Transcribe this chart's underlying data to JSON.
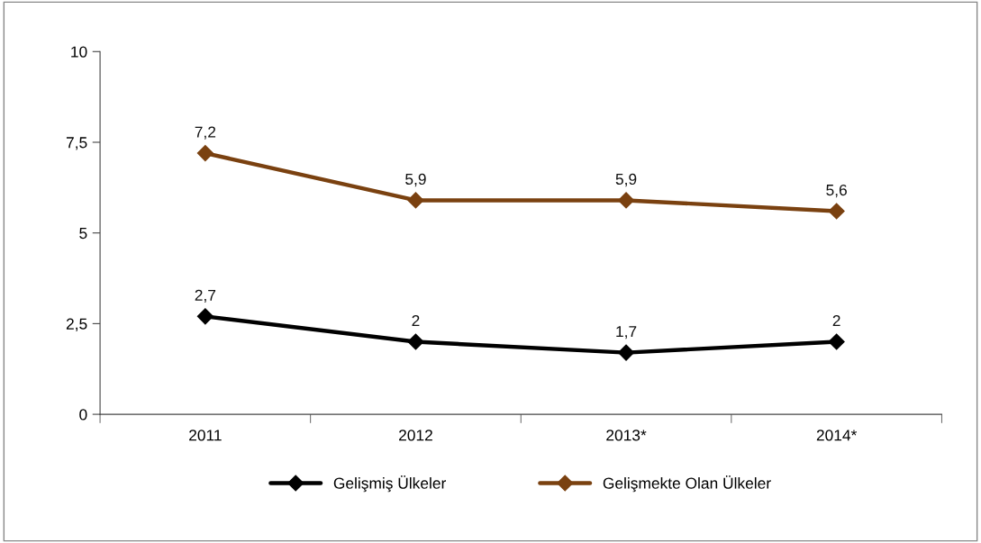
{
  "chart_data": {
    "type": "line",
    "categories": [
      "2011",
      "2012",
      "2013*",
      "2014*"
    ],
    "series": [
      {
        "name": "Gelişmiş Ülkeler",
        "color": "#000000",
        "values": [
          2.7,
          2,
          1.7,
          2
        ],
        "value_labels": [
          "2,7",
          "2",
          "1,7",
          "2"
        ]
      },
      {
        "name": "Gelişmekte Olan Ülkeler",
        "color": "#7a4110",
        "values": [
          7.2,
          5.9,
          5.9,
          5.6
        ],
        "value_labels": [
          "7,2",
          "5,9",
          "5,9",
          "5,6"
        ]
      }
    ],
    "ylim": [
      0,
      10
    ],
    "yticks": [
      0,
      {
        "value": 2.5,
        "label": "2,5"
      },
      5,
      {
        "value": 7.5,
        "label": "7,5"
      },
      10
    ],
    "grid": false,
    "legend": "bottom",
    "marker": "diamond",
    "line_style": "solid"
  }
}
